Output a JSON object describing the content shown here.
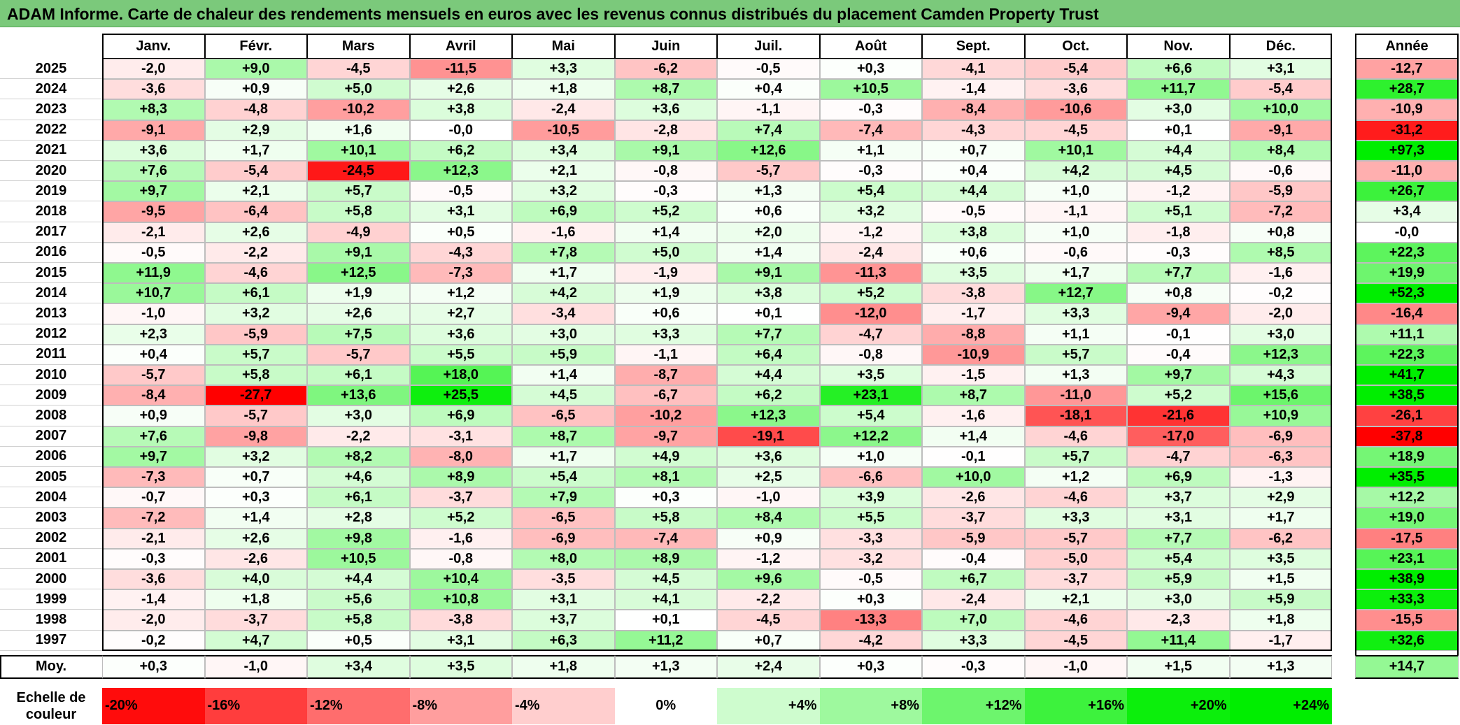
{
  "title": "ADAM Informe. Carte de chaleur des rendements mensuels en euros avec les revenus connus distribués du placement Camden Property Trust",
  "chart_data": {
    "type": "heatmap",
    "columns": [
      "Janv.",
      "Févr.",
      "Mars",
      "Avril",
      "Mai",
      "Juin",
      "Juil.",
      "Août",
      "Sept.",
      "Oct.",
      "Nov.",
      "Déc."
    ],
    "annual_label": "Année",
    "average_label": "Moy.",
    "rows": [
      {
        "year": "2025",
        "values": [
          "-2,0",
          "+9,0",
          "-4,5",
          "-11,5",
          "+3,3",
          "-6,2",
          "-0,5",
          "+0,3",
          "-4,1",
          "-5,4",
          "+6,6",
          "+3,1"
        ],
        "annual": "-12,7"
      },
      {
        "year": "2024",
        "values": [
          "-3,6",
          "+0,9",
          "+5,0",
          "+2,6",
          "+1,8",
          "+8,7",
          "+0,4",
          "+10,5",
          "-1,4",
          "-3,6",
          "+11,7",
          "-5,4"
        ],
        "annual": "+28,7"
      },
      {
        "year": "2023",
        "values": [
          "+8,3",
          "-4,8",
          "-10,2",
          "+3,8",
          "-2,4",
          "+3,6",
          "-1,1",
          "-0,3",
          "-8,4",
          "-10,6",
          "+3,0",
          "+10,0"
        ],
        "annual": "-10,9"
      },
      {
        "year": "2022",
        "values": [
          "-9,1",
          "+2,9",
          "+1,6",
          "-0,0",
          "-10,5",
          "-2,8",
          "+7,4",
          "-7,4",
          "-4,3",
          "-4,5",
          "+0,1",
          "-9,1"
        ],
        "annual": "-31,2"
      },
      {
        "year": "2021",
        "values": [
          "+3,6",
          "+1,7",
          "+10,1",
          "+6,2",
          "+3,4",
          "+9,1",
          "+12,6",
          "+1,1",
          "+0,7",
          "+10,1",
          "+4,4",
          "+8,4"
        ],
        "annual": "+97,3"
      },
      {
        "year": "2020",
        "values": [
          "+7,6",
          "-5,4",
          "-24,5",
          "+12,3",
          "+2,1",
          "-0,8",
          "-5,7",
          "-0,3",
          "+0,4",
          "+4,2",
          "+4,5",
          "-0,6"
        ],
        "annual": "-11,0"
      },
      {
        "year": "2019",
        "values": [
          "+9,7",
          "+2,1",
          "+5,7",
          "-0,5",
          "+3,2",
          "-0,3",
          "+1,3",
          "+5,4",
          "+4,4",
          "+1,0",
          "-1,2",
          "-5,9"
        ],
        "annual": "+26,7"
      },
      {
        "year": "2018",
        "values": [
          "-9,5",
          "-6,4",
          "+5,8",
          "+3,1",
          "+6,9",
          "+5,2",
          "+0,6",
          "+3,2",
          "-0,5",
          "-1,1",
          "+5,1",
          "-7,2"
        ],
        "annual": "+3,4"
      },
      {
        "year": "2017",
        "values": [
          "-2,1",
          "+2,6",
          "-4,9",
          "+0,5",
          "-1,6",
          "+1,4",
          "+2,0",
          "-1,2",
          "+3,8",
          "+1,0",
          "-1,8",
          "+0,8"
        ],
        "annual": "-0,0"
      },
      {
        "year": "2016",
        "values": [
          "-0,5",
          "-2,2",
          "+9,1",
          "-4,3",
          "+7,8",
          "+5,0",
          "+1,4",
          "-2,4",
          "+0,6",
          "-0,6",
          "-0,3",
          "+8,5"
        ],
        "annual": "+22,3"
      },
      {
        "year": "2015",
        "values": [
          "+11,9",
          "-4,6",
          "+12,5",
          "-7,3",
          "+1,7",
          "-1,9",
          "+9,1",
          "-11,3",
          "+3,5",
          "+1,7",
          "+7,7",
          "-1,6"
        ],
        "annual": "+19,9"
      },
      {
        "year": "2014",
        "values": [
          "+10,7",
          "+6,1",
          "+1,9",
          "+1,2",
          "+4,2",
          "+1,9",
          "+3,8",
          "+5,2",
          "-3,8",
          "+12,7",
          "+0,8",
          "-0,2"
        ],
        "annual": "+52,3"
      },
      {
        "year": "2013",
        "values": [
          "-1,0",
          "+3,2",
          "+2,6",
          "+2,7",
          "-3,4",
          "+0,6",
          "+0,1",
          "-12,0",
          "-1,7",
          "+3,3",
          "-9,4",
          "-2,0"
        ],
        "annual": "-16,4"
      },
      {
        "year": "2012",
        "values": [
          "+2,3",
          "-5,9",
          "+7,5",
          "+3,6",
          "+3,0",
          "+3,3",
          "+7,7",
          "-4,7",
          "-8,8",
          "+1,1",
          "-0,1",
          "+3,0"
        ],
        "annual": "+11,1"
      },
      {
        "year": "2011",
        "values": [
          "+0,4",
          "+5,7",
          "-5,7",
          "+5,5",
          "+5,9",
          "-1,1",
          "+6,4",
          "-0,8",
          "-10,9",
          "+5,7",
          "-0,4",
          "+12,3"
        ],
        "annual": "+22,3"
      },
      {
        "year": "2010",
        "values": [
          "-5,7",
          "+5,8",
          "+6,1",
          "+18,0",
          "+1,4",
          "-8,7",
          "+4,4",
          "+3,5",
          "-1,5",
          "+1,3",
          "+9,7",
          "+4,3"
        ],
        "annual": "+41,7"
      },
      {
        "year": "2009",
        "values": [
          "-8,4",
          "-27,7",
          "+13,6",
          "+25,5",
          "+4,5",
          "-6,7",
          "+6,2",
          "+23,1",
          "+8,7",
          "-11,0",
          "+5,2",
          "+15,6"
        ],
        "annual": "+38,5"
      },
      {
        "year": "2008",
        "values": [
          "+0,9",
          "-5,7",
          "+3,0",
          "+6,9",
          "-6,5",
          "-10,2",
          "+12,3",
          "+5,4",
          "-1,6",
          "-18,1",
          "-21,6",
          "+10,9"
        ],
        "annual": "-26,1"
      },
      {
        "year": "2007",
        "values": [
          "+7,6",
          "-9,8",
          "-2,2",
          "-3,1",
          "+8,7",
          "-9,7",
          "-19,1",
          "+12,2",
          "+1,4",
          "-4,6",
          "-17,0",
          "-6,9"
        ],
        "annual": "-37,8"
      },
      {
        "year": "2006",
        "values": [
          "+9,7",
          "+3,2",
          "+8,2",
          "-8,0",
          "+1,7",
          "+4,9",
          "+3,6",
          "+1,0",
          "-0,1",
          "+5,7",
          "-4,7",
          "-6,3"
        ],
        "annual": "+18,9"
      },
      {
        "year": "2005",
        "values": [
          "-7,3",
          "+0,7",
          "+4,6",
          "+8,9",
          "+5,4",
          "+8,1",
          "+2,5",
          "-6,6",
          "+10,0",
          "+1,2",
          "+6,9",
          "-1,3"
        ],
        "annual": "+35,5"
      },
      {
        "year": "2004",
        "values": [
          "-0,7",
          "+0,3",
          "+6,1",
          "-3,7",
          "+7,9",
          "+0,3",
          "-1,0",
          "+3,9",
          "-2,6",
          "-4,6",
          "+3,7",
          "+2,9"
        ],
        "annual": "+12,2"
      },
      {
        "year": "2003",
        "values": [
          "-7,2",
          "+1,4",
          "+2,8",
          "+5,2",
          "-6,5",
          "+5,8",
          "+8,4",
          "+5,5",
          "-3,7",
          "+3,3",
          "+3,1",
          "+1,7"
        ],
        "annual": "+19,0"
      },
      {
        "year": "2002",
        "values": [
          "-2,1",
          "+2,6",
          "+9,8",
          "-1,6",
          "-6,9",
          "-7,4",
          "+0,9",
          "-3,3",
          "-5,9",
          "-5,7",
          "+7,7",
          "-6,2"
        ],
        "annual": "-17,5"
      },
      {
        "year": "2001",
        "values": [
          "-0,3",
          "-2,6",
          "+10,5",
          "-0,8",
          "+8,0",
          "+8,9",
          "-1,2",
          "-3,2",
          "-0,4",
          "-5,0",
          "+5,4",
          "+3,5"
        ],
        "annual": "+23,1"
      },
      {
        "year": "2000",
        "values": [
          "-3,6",
          "+4,0",
          "+4,4",
          "+10,4",
          "-3,5",
          "+4,5",
          "+9,6",
          "-0,5",
          "+6,7",
          "-3,7",
          "+5,9",
          "+1,5"
        ],
        "annual": "+38,9"
      },
      {
        "year": "1999",
        "values": [
          "-1,4",
          "+1,8",
          "+5,6",
          "+10,8",
          "+3,1",
          "+4,1",
          "-2,2",
          "+0,3",
          "-2,4",
          "+2,1",
          "+3,0",
          "+5,9"
        ],
        "annual": "+33,3"
      },
      {
        "year": "1998",
        "values": [
          "-2,0",
          "-3,7",
          "+5,8",
          "-3,8",
          "+3,7",
          "+0,1",
          "-4,5",
          "-13,3",
          "+7,0",
          "-4,6",
          "-2,3",
          "+1,8"
        ],
        "annual": "-15,5"
      },
      {
        "year": "1997",
        "values": [
          "-0,2",
          "+4,7",
          "+0,5",
          "+3,1",
          "+6,3",
          "+11,2",
          "+0,7",
          "-4,2",
          "+3,3",
          "-4,5",
          "+11,4",
          "-1,7"
        ],
        "annual": "+32,6"
      }
    ],
    "averages": [
      "+0,3",
      "-1,0",
      "+3,4",
      "+3,5",
      "+1,8",
      "+1,3",
      "+2,4",
      "+0,3",
      "-0,3",
      "-1,0",
      "+1,5",
      "+1,3"
    ],
    "average_annual": "+14,7",
    "legend": {
      "label": "Echelle de couleur",
      "labels": [
        "-20%",
        "-16%",
        "-12%",
        "-8%",
        "-4%",
        "0%",
        "+4%",
        "+8%",
        "+12%",
        "+16%",
        "+20%",
        "+24%"
      ],
      "values": [
        -20,
        -16,
        -12,
        -8,
        -4,
        0,
        4,
        8,
        12,
        16,
        20,
        24
      ]
    },
    "colors": {
      "negative_max": "#ff0000",
      "neutral": "#ffffff",
      "positive_max": "#00ee00",
      "title_bar": "#7bc97b"
    }
  }
}
